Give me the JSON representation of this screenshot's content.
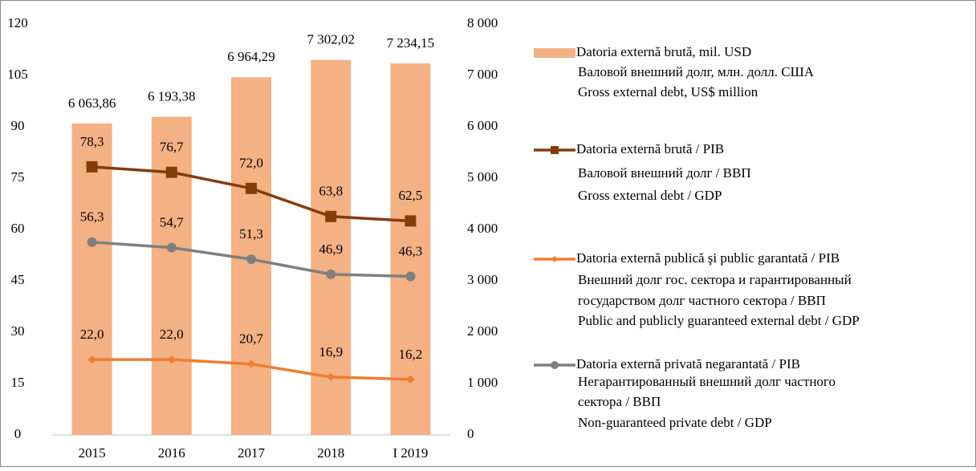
{
  "chart_data": {
    "type": "bar",
    "categories": [
      "2015",
      "2016",
      "2017",
      "2018",
      "I 2019"
    ],
    "ylim": [
      0,
      120
    ],
    "yticks": [
      0,
      15,
      30,
      45,
      60,
      75,
      90,
      105,
      120
    ],
    "y2lim": [
      0,
      8000
    ],
    "y2ticks": [
      0,
      {
        "value": 1000,
        "label": "1 000"
      },
      {
        "value": 2000,
        "label": "2 000"
      },
      {
        "value": 3000,
        "label": "3 000"
      },
      {
        "value": 4000,
        "label": "4 000"
      },
      {
        "value": 5000,
        "label": "5 000"
      },
      {
        "value": 6000,
        "label": "6 000"
      },
      {
        "value": 7000,
        "label": "7 000"
      },
      {
        "value": 8000,
        "label": "8 000"
      }
    ],
    "grid": false,
    "legend": "right",
    "series": [
      {
        "name": [
          "Datoria externă brută, mil. USD",
          "Валовой внешний долг, млн. долл. США",
          "Gross external debt, US$ million"
        ],
        "type": "bar",
        "axis": "y2",
        "color": "#f4b183",
        "values": [
          6063.86,
          6193.38,
          6964.29,
          7302.02,
          7234.15
        ],
        "value_labels": [
          "6 063,86",
          "6 193,38",
          "6 964,29",
          "7 302,02",
          "7 234,15"
        ]
      },
      {
        "name": [
          "Datoria externă brută / PIB",
          "Валовой внешний долг / ВВП",
          "Gross external debt / GDP"
        ],
        "type": "line",
        "marker": "square",
        "color": "#843c0c",
        "values": [
          78.3,
          76.7,
          72.0,
          63.8,
          62.5
        ],
        "value_labels": [
          "78,3",
          "76,7",
          "72,0",
          "63,8",
          "62,5"
        ]
      },
      {
        "name": [
          "Datoria externă publică şi public garantată / PIB",
          "Внешний долг гос. сектора и гарантированный",
          "государством долг частного сектора  / ВВП",
          "Public and publicly guaranteed external debt / GDP"
        ],
        "type": "line",
        "marker": "diamond",
        "color": "#ed7d31",
        "values": [
          22.0,
          22.0,
          20.7,
          16.9,
          16.2
        ],
        "value_labels": [
          "22,0",
          "22,0",
          "20,7",
          "16,9",
          "16,2"
        ]
      },
      {
        "name": [
          "Datoria externă privată negarantată / PIB",
          "Негарантированный внешний долг частного",
          "сектора / ВВП",
          "Non-guaranteed private debt / GDP"
        ],
        "type": "line",
        "marker": "circle",
        "color": "#7f7f7f",
        "values": [
          56.3,
          54.7,
          51.3,
          46.9,
          46.3
        ],
        "value_labels": [
          "56,3",
          "54,7",
          "51,3",
          "46,9",
          "46,3"
        ]
      }
    ]
  }
}
